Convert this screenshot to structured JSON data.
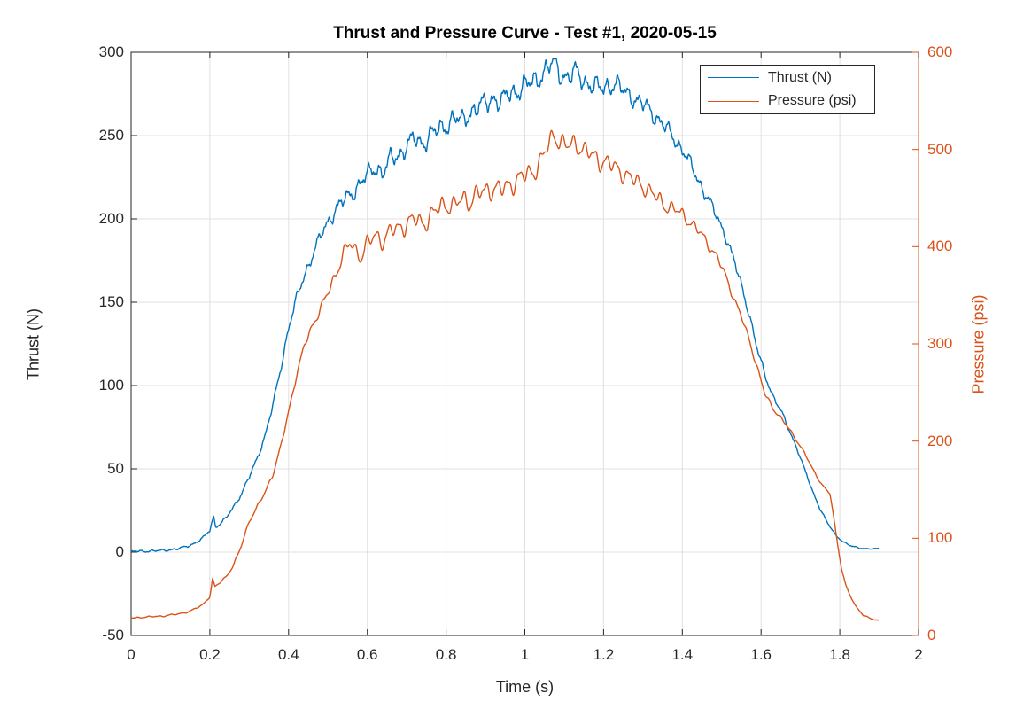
{
  "title": "Thrust and Pressure Curve - Test #1, 2020-05-15",
  "colors": {
    "thrust": "#0072BD",
    "pressure": "#D95319",
    "axis": "#262626",
    "grid": "#E0E0E0",
    "background": "#FFFFFF"
  },
  "legend": {
    "items": [
      {
        "label": "Thrust (N)",
        "color": "#0072BD"
      },
      {
        "label": "Pressure (psi)",
        "color": "#D95319"
      }
    ],
    "position": "northeast-inside"
  },
  "chart_data": {
    "type": "line",
    "title": "Thrust and Pressure Curve - Test #1, 2020-05-15",
    "xlabel": "Time (s)",
    "ylabel_left": "Thrust (N)",
    "ylabel_right": "Pressure (psi)",
    "xlim": [
      0,
      2
    ],
    "ylim_left": [
      -50,
      300
    ],
    "ylim_right": [
      0,
      600
    ],
    "x_ticks": [
      0,
      0.2,
      0.4,
      0.6,
      0.8,
      1,
      1.2,
      1.4,
      1.6,
      1.8,
      2
    ],
    "x_tick_labels": [
      "0",
      "0.2",
      "0.4",
      "0.6",
      "0.8",
      "1",
      "1.2",
      "1.4",
      "1.6",
      "1.8",
      "2"
    ],
    "y_ticks_left": [
      -50,
      0,
      50,
      100,
      150,
      200,
      250,
      300
    ],
    "y_tick_labels_left": [
      "-50",
      "0",
      "50",
      "100",
      "150",
      "200",
      "250",
      "300"
    ],
    "y_ticks_right": [
      0,
      100,
      200,
      300,
      400,
      500,
      600
    ],
    "y_tick_labels_right": [
      "0",
      "100",
      "200",
      "300",
      "400",
      "500",
      "600"
    ],
    "grid": true,
    "legend_position": "top-right-inside",
    "series": [
      {
        "name": "Thrust (N)",
        "axis": "left",
        "color": "#0072BD",
        "vmin": -49,
        "vmax": 296,
        "points": [
          [
            0,
            0.4
          ],
          [
            0.04,
            0.6
          ],
          [
            0.08,
            1
          ],
          [
            0.12,
            2
          ],
          [
            0.15,
            4
          ],
          [
            0.18,
            8
          ],
          [
            0.2,
            13
          ],
          [
            0.205,
            18
          ],
          [
            0.21,
            21
          ],
          [
            0.215,
            15
          ],
          [
            0.225,
            17
          ],
          [
            0.24,
            20
          ],
          [
            0.26,
            27
          ],
          [
            0.28,
            35
          ],
          [
            0.3,
            45
          ],
          [
            0.32,
            56
          ],
          [
            0.34,
            70
          ],
          [
            0.36,
            88
          ],
          [
            0.38,
            110
          ],
          [
            0.4,
            135
          ],
          [
            0.42,
            152
          ],
          [
            0.44,
            166
          ],
          [
            0.46,
            178
          ],
          [
            0.48,
            189
          ],
          [
            0.5,
            198
          ],
          [
            0.52,
            206
          ],
          [
            0.54,
            211
          ],
          [
            0.56,
            215
          ],
          [
            0.58,
            221
          ],
          [
            0.6,
            226
          ],
          [
            0.62,
            231
          ],
          [
            0.64,
            228
          ],
          [
            0.66,
            236
          ],
          [
            0.68,
            238
          ],
          [
            0.7,
            244
          ],
          [
            0.72,
            248
          ],
          [
            0.74,
            245
          ],
          [
            0.76,
            251
          ],
          [
            0.78,
            253
          ],
          [
            0.8,
            256
          ],
          [
            0.82,
            261
          ],
          [
            0.84,
            258
          ],
          [
            0.86,
            264
          ],
          [
            0.88,
            267
          ],
          [
            0.9,
            269
          ],
          [
            0.92,
            273
          ],
          [
            0.94,
            270
          ],
          [
            0.96,
            275
          ],
          [
            0.98,
            277
          ],
          [
            1.0,
            280
          ],
          [
            1.02,
            282
          ],
          [
            1.04,
            286
          ],
          [
            1.06,
            291
          ],
          [
            1.075,
            294
          ],
          [
            1.09,
            287
          ],
          [
            1.11,
            285
          ],
          [
            1.13,
            288
          ],
          [
            1.15,
            283
          ],
          [
            1.17,
            280
          ],
          [
            1.19,
            278
          ],
          [
            1.21,
            280
          ],
          [
            1.23,
            281
          ],
          [
            1.25,
            277
          ],
          [
            1.27,
            274
          ],
          [
            1.29,
            270
          ],
          [
            1.31,
            267
          ],
          [
            1.33,
            262
          ],
          [
            1.35,
            257
          ],
          [
            1.37,
            251
          ],
          [
            1.39,
            245
          ],
          [
            1.41,
            238
          ],
          [
            1.43,
            228
          ],
          [
            1.45,
            219
          ],
          [
            1.47,
            210
          ],
          [
            1.49,
            200
          ],
          [
            1.51,
            190
          ],
          [
            1.53,
            176
          ],
          [
            1.55,
            160
          ],
          [
            1.57,
            143
          ],
          [
            1.59,
            122
          ],
          [
            1.61,
            106
          ],
          [
            1.63,
            94
          ],
          [
            1.65,
            85
          ],
          [
            1.67,
            74
          ],
          [
            1.69,
            63
          ],
          [
            1.71,
            50
          ],
          [
            1.73,
            37
          ],
          [
            1.75,
            26
          ],
          [
            1.77,
            17
          ],
          [
            1.79,
            10
          ],
          [
            1.81,
            6
          ],
          [
            1.83,
            3.5
          ],
          [
            1.85,
            2.5
          ],
          [
            1.87,
            2
          ],
          [
            1.9,
            2
          ]
        ],
        "noise_envelope": [
          [
            0,
            0.8
          ],
          [
            0.15,
            0.8
          ],
          [
            0.25,
            1.2
          ],
          [
            0.35,
            2
          ],
          [
            0.45,
            4
          ],
          [
            0.55,
            6
          ],
          [
            0.65,
            7
          ],
          [
            0.8,
            7.5
          ],
          [
            1.0,
            8
          ],
          [
            1.2,
            7.5
          ],
          [
            1.35,
            6
          ],
          [
            1.5,
            4
          ],
          [
            1.6,
            2.5
          ],
          [
            1.7,
            1
          ],
          [
            1.8,
            0.5
          ],
          [
            1.9,
            0.4
          ]
        ]
      },
      {
        "name": "Pressure (psi)",
        "axis": "right",
        "color": "#D95319",
        "vmin": 10,
        "vmax": 520,
        "points": [
          [
            0,
            18
          ],
          [
            0.04,
            19
          ],
          [
            0.08,
            20
          ],
          [
            0.12,
            22
          ],
          [
            0.15,
            25
          ],
          [
            0.18,
            31
          ],
          [
            0.2,
            40
          ],
          [
            0.207,
            58
          ],
          [
            0.213,
            50
          ],
          [
            0.225,
            54
          ],
          [
            0.24,
            60
          ],
          [
            0.26,
            72
          ],
          [
            0.28,
            92
          ],
          [
            0.3,
            118
          ],
          [
            0.32,
            132
          ],
          [
            0.34,
            147
          ],
          [
            0.36,
            166
          ],
          [
            0.38,
            194
          ],
          [
            0.4,
            230
          ],
          [
            0.42,
            268
          ],
          [
            0.44,
            298
          ],
          [
            0.46,
            318
          ],
          [
            0.48,
            336
          ],
          [
            0.5,
            352
          ],
          [
            0.52,
            372
          ],
          [
            0.54,
            394
          ],
          [
            0.555,
            403
          ],
          [
            0.57,
            396
          ],
          [
            0.585,
            391
          ],
          [
            0.6,
            403
          ],
          [
            0.62,
            411
          ],
          [
            0.64,
            407
          ],
          [
            0.66,
            416
          ],
          [
            0.68,
            419
          ],
          [
            0.7,
            424
          ],
          [
            0.72,
            428
          ],
          [
            0.74,
            424
          ],
          [
            0.76,
            431
          ],
          [
            0.78,
            439
          ],
          [
            0.8,
            445
          ],
          [
            0.82,
            441
          ],
          [
            0.84,
            449
          ],
          [
            0.86,
            447
          ],
          [
            0.88,
            454
          ],
          [
            0.9,
            457
          ],
          [
            0.92,
            461
          ],
          [
            0.94,
            458
          ],
          [
            0.96,
            463
          ],
          [
            0.98,
            469
          ],
          [
            1.0,
            473
          ],
          [
            1.02,
            477
          ],
          [
            1.04,
            488
          ],
          [
            1.06,
            504
          ],
          [
            1.075,
            517
          ],
          [
            1.09,
            507
          ],
          [
            1.11,
            503
          ],
          [
            1.13,
            507
          ],
          [
            1.15,
            499
          ],
          [
            1.17,
            494
          ],
          [
            1.19,
            489
          ],
          [
            1.21,
            486
          ],
          [
            1.23,
            481
          ],
          [
            1.25,
            476
          ],
          [
            1.27,
            470
          ],
          [
            1.29,
            465
          ],
          [
            1.31,
            460
          ],
          [
            1.33,
            452
          ],
          [
            1.35,
            445
          ],
          [
            1.37,
            440
          ],
          [
            1.39,
            436
          ],
          [
            1.41,
            430
          ],
          [
            1.43,
            421
          ],
          [
            1.45,
            412
          ],
          [
            1.47,
            400
          ],
          [
            1.49,
            388
          ],
          [
            1.51,
            370
          ],
          [
            1.53,
            348
          ],
          [
            1.55,
            328
          ],
          [
            1.57,
            304
          ],
          [
            1.59,
            276
          ],
          [
            1.61,
            248
          ],
          [
            1.63,
            234
          ],
          [
            1.65,
            224
          ],
          [
            1.67,
            213
          ],
          [
            1.69,
            201
          ],
          [
            1.71,
            188
          ],
          [
            1.73,
            172
          ],
          [
            1.75,
            158
          ],
          [
            1.765,
            150
          ],
          [
            1.775,
            146
          ],
          [
            1.785,
            120
          ],
          [
            1.795,
            92
          ],
          [
            1.805,
            68
          ],
          [
            1.815,
            52
          ],
          [
            1.825,
            42
          ],
          [
            1.84,
            30
          ],
          [
            1.86,
            21
          ],
          [
            1.88,
            17
          ],
          [
            1.9,
            15
          ]
        ],
        "noise_envelope": [
          [
            0,
            0.8
          ],
          [
            0.2,
            1
          ],
          [
            0.3,
            2
          ],
          [
            0.4,
            3
          ],
          [
            0.5,
            6
          ],
          [
            0.6,
            11
          ],
          [
            0.7,
            12
          ],
          [
            0.8,
            13
          ],
          [
            1.0,
            13
          ],
          [
            1.2,
            12
          ],
          [
            1.35,
            10
          ],
          [
            1.5,
            5
          ],
          [
            1.6,
            3
          ],
          [
            1.7,
            1.5
          ],
          [
            1.8,
            1
          ],
          [
            1.9,
            0.6
          ]
        ]
      }
    ]
  }
}
